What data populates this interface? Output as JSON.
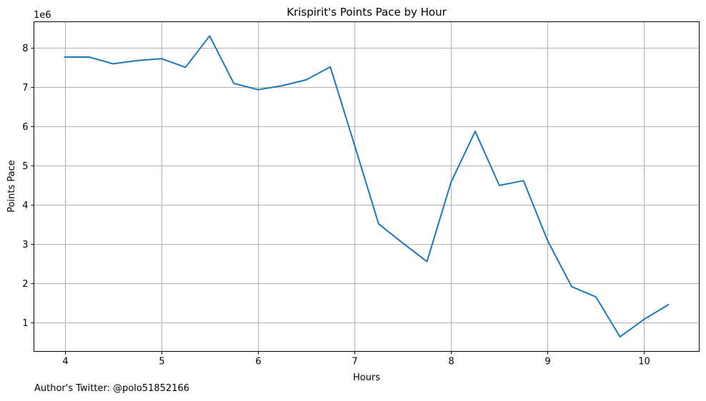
{
  "chart_data": {
    "type": "line",
    "title": "Krispirit's Points Pace by Hour",
    "xlabel": "Hours",
    "ylabel": "Points Pace",
    "y_multiplier_label": "1e6",
    "xlim": [
      3.68,
      10.57
    ],
    "ylim": [
      0.26,
      8.66
    ],
    "x_ticks": [
      4,
      5,
      6,
      7,
      8,
      9,
      10
    ],
    "y_ticks": [
      1,
      2,
      3,
      4,
      5,
      6,
      7,
      8
    ],
    "grid": true,
    "line_color": "#1f77b4",
    "series": [
      {
        "x": [
          4.0,
          4.25,
          4.5,
          4.75,
          5.0,
          5.25,
          5.5,
          5.75,
          6.0,
          6.25,
          6.5,
          6.75,
          7.0,
          7.25,
          7.5,
          7.75,
          8.0,
          8.25,
          8.5,
          8.75,
          9.0,
          9.25,
          9.5,
          9.75,
          10.0,
          10.25
        ],
        "values": [
          7.76,
          7.76,
          7.59,
          7.67,
          7.72,
          7.5,
          8.3,
          7.09,
          6.93,
          7.03,
          7.18,
          7.51,
          5.52,
          3.51,
          3.02,
          2.55,
          4.57,
          5.87,
          4.49,
          4.61,
          3.08,
          1.91,
          1.65,
          0.63,
          1.08,
          1.45
        ]
      }
    ]
  },
  "footer": {
    "text": "Author's Twitter: @polo51852166"
  }
}
